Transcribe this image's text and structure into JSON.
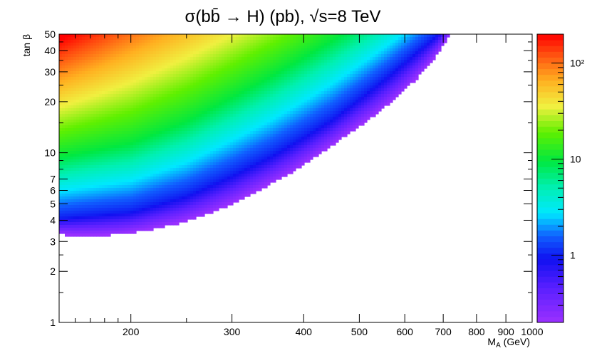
{
  "chart_data": {
    "type": "heatmap",
    "title": "σ(bb̄ → H) (pb), √s=8 TeV",
    "xlabel": "M_A (GeV)",
    "xlabel_main": "M",
    "xlabel_sub": "A",
    "xlabel_unit": " (GeV)",
    "ylabel": "tan β",
    "x_scale": "log",
    "y_scale": "log",
    "xlim": [
      150,
      1000
    ],
    "ylim": [
      1,
      50
    ],
    "x_ticks": [
      200,
      300,
      400,
      500,
      600,
      700,
      800,
      900,
      1000
    ],
    "x_tick_labels": [
      "200",
      "300",
      "400",
      "500",
      "600",
      "700",
      "800",
      "900",
      "1000"
    ],
    "y_ticks": [
      1,
      2,
      3,
      4,
      5,
      6,
      7,
      10,
      20,
      30,
      40,
      50
    ],
    "y_tick_labels": [
      "1",
      "2",
      "3",
      "4",
      "5",
      "6",
      "7",
      "10",
      "20",
      "30",
      "40",
      "50"
    ],
    "z_scale": "log",
    "zlim": [
      0.2,
      200
    ],
    "z_ticks": [
      1,
      10,
      100
    ],
    "z_tick_labels": [
      "1",
      "10",
      "10²"
    ],
    "colorbar_palette": "rainbow (violet → blue → cyan → green → yellow → red)",
    "region_lower_boundary": {
      "description": "lower edge of filled region (tanβ where σ ≈ 0.2 pb)",
      "x": [
        150,
        160,
        175,
        190,
        210,
        240,
        270,
        300,
        340,
        380,
        430,
        480,
        530,
        580,
        630,
        680,
        720
      ],
      "tan_beta": [
        3.3,
        3.25,
        3.25,
        3.3,
        3.45,
        3.8,
        4.3,
        5.0,
        6.2,
        7.6,
        10.0,
        13.0,
        16.5,
        21.0,
        27.5,
        37.0,
        50.0
      ]
    },
    "contours": [
      {
        "sigma_pb": 1,
        "x": [
          150,
          200,
          250,
          300,
          350,
          400,
          450,
          500,
          550,
          600
        ],
        "tan_beta": [
          4.1,
          4.5,
          5.6,
          7.4,
          9.6,
          12.5,
          16.0,
          21.0,
          27.0,
          34.5
        ]
      },
      {
        "sigma_pb": 10,
        "x": [
          150,
          200,
          250,
          300,
          350,
          400,
          450
        ],
        "tan_beta": [
          9.5,
          11.5,
          15.5,
          21.5,
          28.5,
          37.0,
          47.0
        ]
      },
      {
        "sigma_pb": 100,
        "x": [
          150,
          175,
          200
        ],
        "tan_beta": [
          32,
          40,
          50
        ]
      }
    ]
  }
}
